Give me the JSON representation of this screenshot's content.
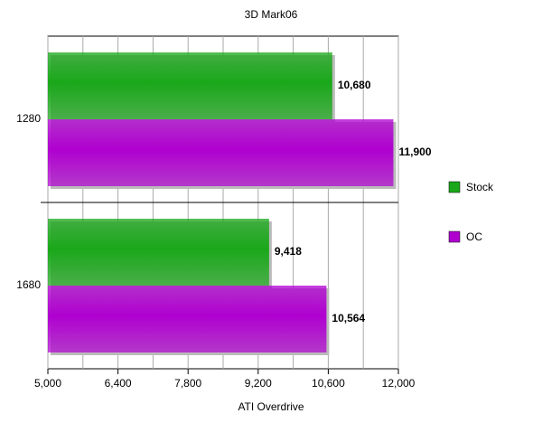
{
  "chart_data": {
    "type": "hbar",
    "title": "3D Mark06",
    "x_label": "ATI Overdrive",
    "categories": [
      "1280",
      "1680"
    ],
    "series": [
      {
        "name": "Stock",
        "color": "#1aa81a",
        "values": [
          10680,
          9418
        ],
        "value_labels": [
          "10,680",
          "9,418"
        ]
      },
      {
        "name": "OC",
        "color": "#b000d0",
        "values": [
          11900,
          10564
        ],
        "value_labels": [
          "11,900",
          "10,564"
        ]
      }
    ],
    "xlim": [
      5000,
      12000
    ],
    "xticks": [
      {
        "value": 5000,
        "label": "5,000"
      },
      {
        "value": 6400,
        "label": "6,400"
      },
      {
        "value": 7800,
        "label": "7,800"
      },
      {
        "value": 9200,
        "label": "9,200"
      },
      {
        "value": 10600,
        "label": "10,600"
      },
      {
        "value": 12000,
        "label": "12,000"
      }
    ],
    "minor_xticks": [
      5700,
      7100,
      8500,
      9900,
      11300
    ],
    "grid": true,
    "legend": "right"
  }
}
